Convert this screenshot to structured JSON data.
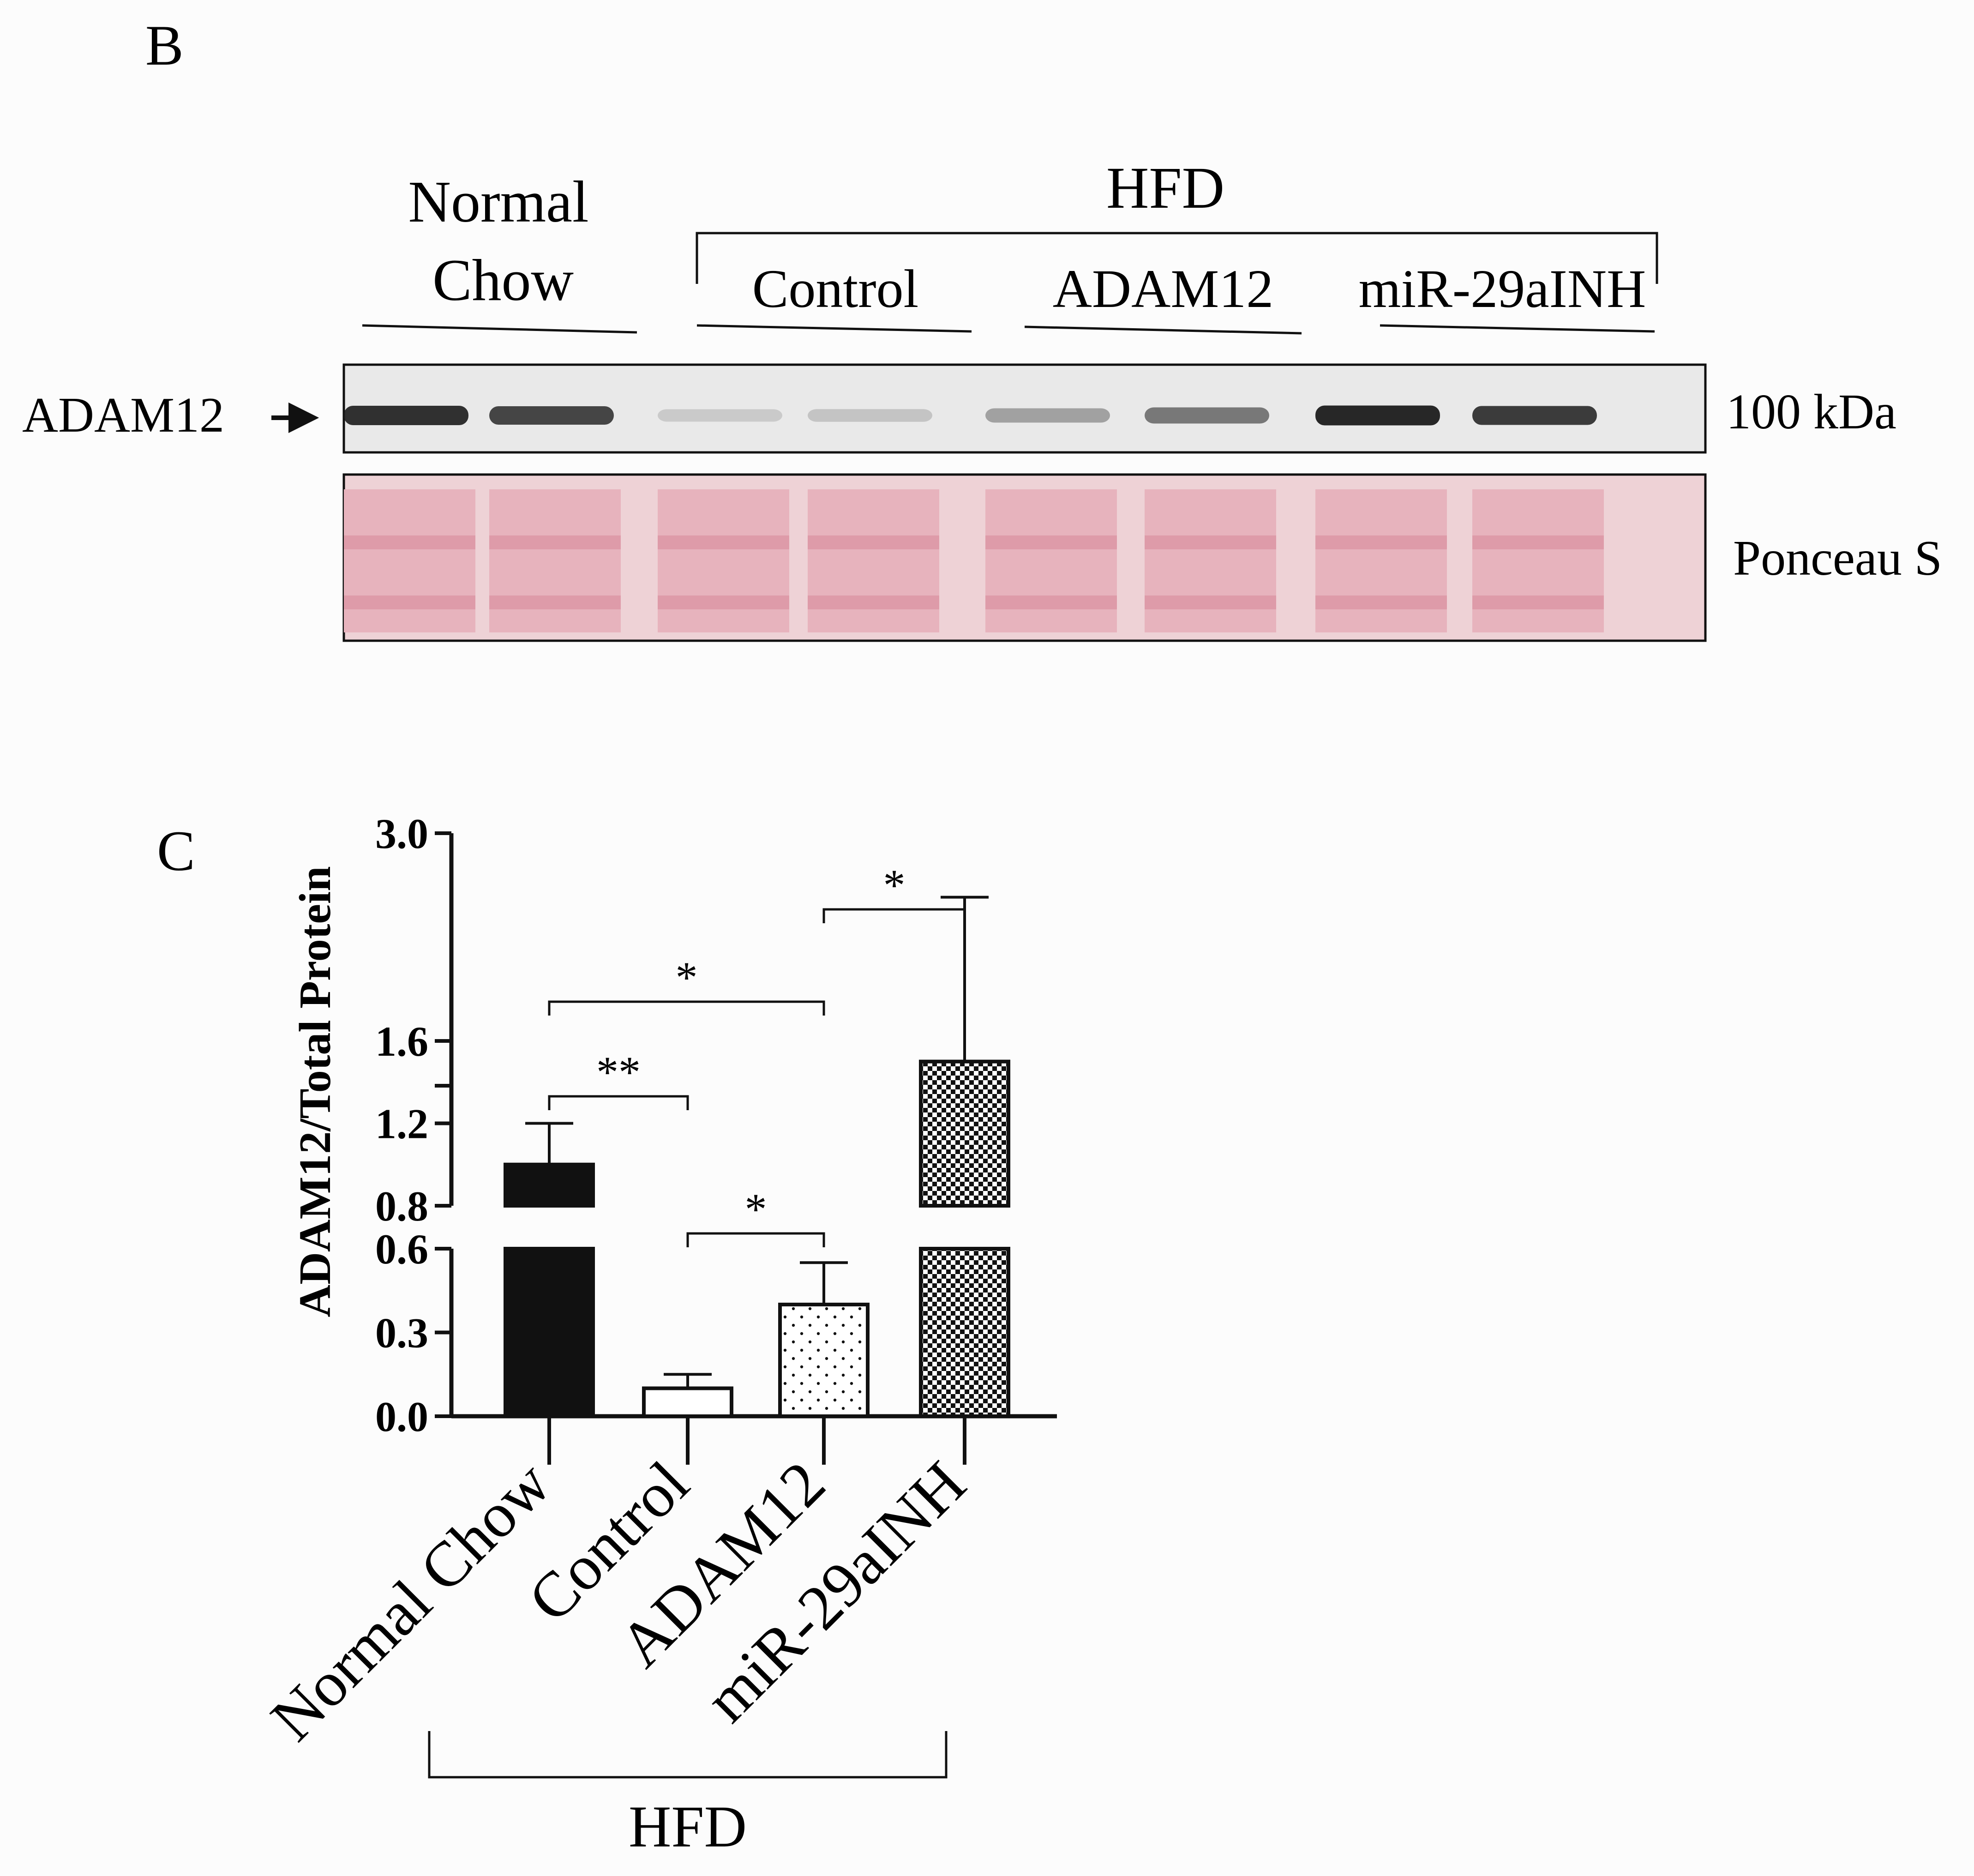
{
  "panel_b": {
    "label": "B",
    "group_normal": [
      "Normal",
      "Chow"
    ],
    "group_hfd": "HFD",
    "subgroups": [
      "Control",
      "ADAM12",
      "miR-29aINH"
    ],
    "row_label": "ADAM12",
    "size_label": "100 kDa",
    "stain_label": "Ponceau S",
    "band_intensity": [
      0.9,
      0.8,
      0.15,
      0.18,
      0.35,
      0.55,
      0.95,
      0.85
    ],
    "colors": {
      "blot_bg": "#e9e9e9",
      "band": "#1c1c1c",
      "ponceau_bg": "#eed2d6",
      "ponceau_band": "#d98a9b"
    }
  },
  "panel_c": {
    "label": "C",
    "chart_data": {
      "type": "bar",
      "categories": [
        "Normal Chow",
        "Control",
        "ADAM12",
        "miR-29aINH"
      ],
      "values": [
        1.0,
        0.1,
        0.4,
        1.5
      ],
      "error_upper": [
        1.2,
        0.15,
        0.55,
        2.45
      ],
      "fills": [
        "solid",
        "empty",
        "dots",
        "checker"
      ],
      "ylabel": "ADAM12/Total Protein",
      "broken_axis_segments": [
        [
          0,
          0.6
        ],
        [
          0.8,
          1.6
        ],
        [
          1.6,
          3.0
        ]
      ],
      "yticks": [
        "0.0",
        "0.3",
        "0.6",
        "0.8",
        "1.2",
        "1.6",
        "3.0"
      ],
      "group_label": "HFD",
      "group_members": [
        "Control",
        "ADAM12",
        "miR-29aINH"
      ],
      "significance": [
        {
          "from": "Normal Chow",
          "to": "Control",
          "label": "**"
        },
        {
          "from": "Normal Chow",
          "to": "ADAM12",
          "label": "*"
        },
        {
          "from": "Control",
          "to": "ADAM12",
          "label": "*"
        },
        {
          "from": "ADAM12",
          "to": "miR-29aINH",
          "label": "*"
        }
      ]
    }
  }
}
